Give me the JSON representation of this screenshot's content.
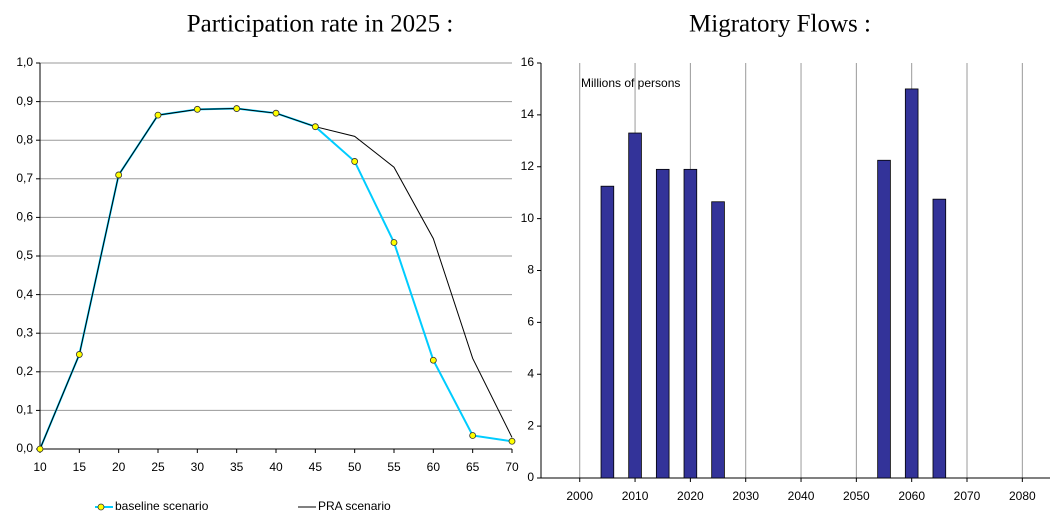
{
  "chart_data": [
    {
      "type": "line",
      "title": "Participation rate in 2025 :",
      "x": [
        10,
        15,
        20,
        25,
        30,
        35,
        40,
        45,
        50,
        55,
        60,
        65,
        70
      ],
      "series": [
        {
          "name": "baseline scenario",
          "color": "#00ccff",
          "marker_color": "#ffff00",
          "values": [
            0.0,
            0.245,
            0.71,
            0.865,
            0.88,
            0.882,
            0.87,
            0.835,
            0.745,
            0.535,
            0.23,
            0.035,
            0.02
          ]
        },
        {
          "name": "PRA scenario",
          "color": "#000000",
          "values": [
            0.0,
            0.245,
            0.71,
            0.865,
            0.88,
            0.882,
            0.87,
            0.835,
            0.81,
            0.73,
            0.545,
            0.235,
            0.03
          ]
        }
      ],
      "xlim": [
        10,
        70
      ],
      "xticks": [
        10,
        15,
        20,
        25,
        30,
        35,
        40,
        45,
        50,
        55,
        60,
        65,
        70
      ],
      "ylim": [
        0,
        1
      ],
      "yticks": [
        {
          "value": 0,
          "label": "0,0"
        },
        {
          "value": 0.1,
          "label": "0,1"
        },
        {
          "value": 0.2,
          "label": "0,2"
        },
        {
          "value": 0.3,
          "label": "0,3"
        },
        {
          "value": 0.4,
          "label": "0,4"
        },
        {
          "value": 0.5,
          "label": "0,5"
        },
        {
          "value": 0.6,
          "label": "0,6"
        },
        {
          "value": 0.7,
          "label": "0,7"
        },
        {
          "value": 0.8,
          "label": "0,8"
        },
        {
          "value": 0.9,
          "label": "0,9"
        },
        {
          "value": 1,
          "label": "1,0"
        }
      ],
      "grid": "y",
      "legend": "bottom"
    },
    {
      "type": "bar",
      "title": "Migratory Flows :",
      "annotation": "Millions of persons",
      "x": [
        2005,
        2010,
        2015,
        2020,
        2025,
        2055,
        2060,
        2065
      ],
      "values": [
        11.25,
        13.3,
        11.9,
        11.9,
        10.65,
        12.25,
        15.0,
        10.75
      ],
      "color": "#333399",
      "xlim": [
        1993,
        2085
      ],
      "xticks": [
        2000,
        2010,
        2020,
        2030,
        2040,
        2050,
        2060,
        2070,
        2080
      ],
      "ylim": [
        0,
        16
      ],
      "yticks": [
        0,
        2,
        4,
        6,
        8,
        10,
        12,
        14,
        16
      ],
      "grid": "x"
    }
  ]
}
